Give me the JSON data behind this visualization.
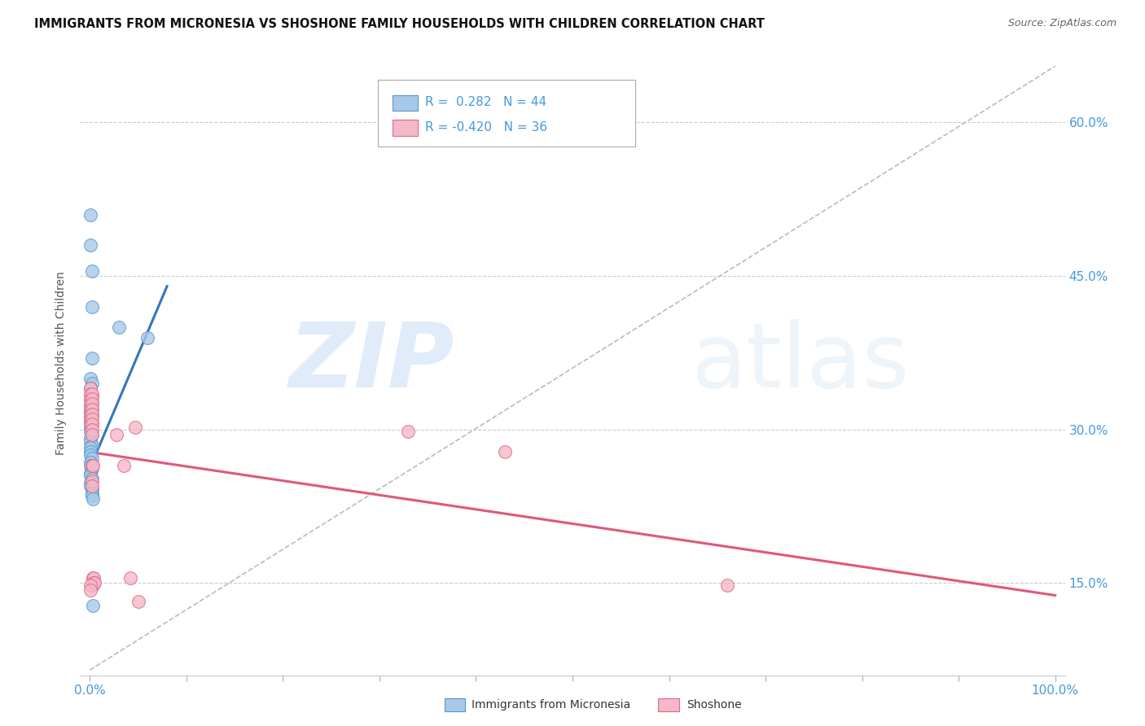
{
  "title": "IMMIGRANTS FROM MICRONESIA VS SHOSHONE FAMILY HOUSEHOLDS WITH CHILDREN CORRELATION CHART",
  "source": "Source: ZipAtlas.com",
  "ylabel": "Family Households with Children",
  "legend1_R": "0.282",
  "legend1_N": "44",
  "legend2_R": "-0.420",
  "legend2_N": "36",
  "color_blue_fill": "#a8c8e8",
  "color_blue_edge": "#5599cc",
  "color_pink_fill": "#f4b8c8",
  "color_pink_edge": "#e06888",
  "color_blue_line": "#3377bb",
  "color_pink_line": "#e05878",
  "color_dashed": "#bbbbbb",
  "color_grid": "#cccccc",
  "color_axis_text": "#4499dd",
  "blue_points": [
    [
      0.001,
      0.51
    ],
    [
      0.001,
      0.48
    ],
    [
      0.002,
      0.455
    ],
    [
      0.002,
      0.42
    ],
    [
      0.002,
      0.37
    ],
    [
      0.001,
      0.35
    ],
    [
      0.002,
      0.345
    ],
    [
      0.001,
      0.34
    ],
    [
      0.002,
      0.332
    ],
    [
      0.001,
      0.33
    ],
    [
      0.002,
      0.325
    ],
    [
      0.001,
      0.323
    ],
    [
      0.002,
      0.32
    ],
    [
      0.001,
      0.318
    ],
    [
      0.001,
      0.316
    ],
    [
      0.002,
      0.314
    ],
    [
      0.001,
      0.312
    ],
    [
      0.001,
      0.308
    ],
    [
      0.002,
      0.305
    ],
    [
      0.001,
      0.302
    ],
    [
      0.001,
      0.298
    ],
    [
      0.002,
      0.295
    ],
    [
      0.001,
      0.292
    ],
    [
      0.001,
      0.288
    ],
    [
      0.002,
      0.285
    ],
    [
      0.001,
      0.282
    ],
    [
      0.001,
      0.278
    ],
    [
      0.001,
      0.275
    ],
    [
      0.002,
      0.272
    ],
    [
      0.001,
      0.268
    ],
    [
      0.001,
      0.265
    ],
    [
      0.002,
      0.262
    ],
    [
      0.001,
      0.258
    ],
    [
      0.001,
      0.255
    ],
    [
      0.002,
      0.252
    ],
    [
      0.001,
      0.248
    ],
    [
      0.001,
      0.245
    ],
    [
      0.002,
      0.242
    ],
    [
      0.002,
      0.238
    ],
    [
      0.002,
      0.235
    ],
    [
      0.003,
      0.232
    ],
    [
      0.003,
      0.128
    ],
    [
      0.03,
      0.4
    ],
    [
      0.06,
      0.39
    ]
  ],
  "pink_points": [
    [
      0.001,
      0.34
    ],
    [
      0.001,
      0.335
    ],
    [
      0.001,
      0.33
    ],
    [
      0.001,
      0.325
    ],
    [
      0.001,
      0.32
    ],
    [
      0.001,
      0.315
    ],
    [
      0.001,
      0.31
    ],
    [
      0.001,
      0.305
    ],
    [
      0.002,
      0.335
    ],
    [
      0.002,
      0.33
    ],
    [
      0.002,
      0.325
    ],
    [
      0.002,
      0.32
    ],
    [
      0.002,
      0.315
    ],
    [
      0.002,
      0.31
    ],
    [
      0.002,
      0.305
    ],
    [
      0.002,
      0.3
    ],
    [
      0.002,
      0.295
    ],
    [
      0.002,
      0.265
    ],
    [
      0.002,
      0.25
    ],
    [
      0.002,
      0.245
    ],
    [
      0.003,
      0.265
    ],
    [
      0.003,
      0.155
    ],
    [
      0.003,
      0.148
    ],
    [
      0.004,
      0.155
    ],
    [
      0.004,
      0.15
    ],
    [
      0.005,
      0.15
    ],
    [
      0.001,
      0.148
    ],
    [
      0.001,
      0.143
    ],
    [
      0.028,
      0.295
    ],
    [
      0.035,
      0.265
    ],
    [
      0.042,
      0.155
    ],
    [
      0.047,
      0.302
    ],
    [
      0.05,
      0.132
    ],
    [
      0.33,
      0.298
    ],
    [
      0.43,
      0.278
    ],
    [
      0.66,
      0.148
    ]
  ],
  "blue_line_x": [
    0.0,
    0.08
  ],
  "blue_line_y": [
    0.262,
    0.44
  ],
  "pink_line_x": [
    0.0,
    1.0
  ],
  "pink_line_y": [
    0.278,
    0.138
  ],
  "dashed_line_x": [
    0.0,
    1.0
  ],
  "dashed_line_y": [
    0.065,
    0.655
  ],
  "xlim": [
    0.0,
    1.0
  ],
  "ylim": [
    0.06,
    0.67
  ],
  "ytick_vals": [
    0.15,
    0.3,
    0.45,
    0.6
  ],
  "ytick_labels": [
    "15.0%",
    "30.0%",
    "45.0%",
    "60.0%"
  ]
}
